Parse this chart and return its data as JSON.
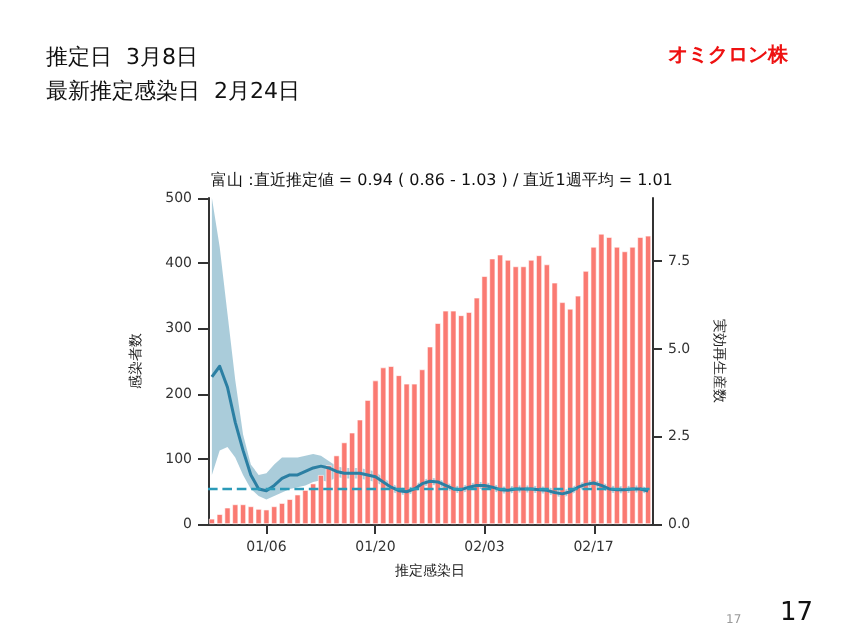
{
  "chart_data": {
    "type": "bar",
    "title": "富山 :直近推定値 = 0.94 ( 0.86 - 1.03 ) / 直近1週平均 = 1.01",
    "xlabel": "推定感染日",
    "ylabel": "感染者数",
    "y2label": "実効再生産数",
    "annotations": [
      "推定日  3月8日",
      "最新推定感染日  2月24日",
      "オミクロン株",
      "17",
      "17"
    ],
    "categories": [
      null,
      null,
      null,
      null,
      null,
      null,
      null,
      "01/06",
      null,
      null,
      null,
      null,
      null,
      null,
      null,
      null,
      null,
      null,
      null,
      null,
      null,
      "01/20",
      null,
      null,
      null,
      null,
      null,
      null,
      null,
      null,
      null,
      null,
      null,
      null,
      null,
      "02/03",
      null,
      null,
      null,
      null,
      null,
      null,
      null,
      null,
      null,
      null,
      null,
      null,
      null,
      "02/17",
      null,
      null,
      null,
      null,
      null,
      null,
      null
    ],
    "series": [
      {
        "color": "#fa7a72",
        "values": [
          8,
          15,
          25,
          30,
          30,
          27,
          23,
          22,
          27,
          32,
          38,
          45,
          52,
          62,
          75,
          90,
          105,
          125,
          140,
          160,
          190,
          220,
          240,
          242,
          228,
          215,
          215,
          237,
          272,
          308,
          327,
          327,
          320,
          325,
          347,
          380,
          407,
          413,
          405,
          395,
          395,
          405,
          412,
          398,
          370,
          340,
          330,
          350,
          388,
          425,
          445,
          440,
          425,
          418,
          425,
          440,
          442
        ]
      },
      {
        "type": "line",
        "axis": "y2",
        "color": "#2b7fa3",
        "values": [
          4.2,
          4.5,
          3.9,
          2.9,
          2.1,
          1.4,
          1.0,
          0.95,
          1.1,
          1.3,
          1.4,
          1.4,
          1.5,
          1.6,
          1.65,
          1.6,
          1.5,
          1.45,
          1.45,
          1.45,
          1.4,
          1.35,
          1.2,
          1.05,
          0.95,
          0.92,
          1.0,
          1.15,
          1.22,
          1.2,
          1.1,
          1.0,
          0.98,
          1.05,
          1.1,
          1.1,
          1.05,
          0.98,
          0.96,
          1.0,
          1.0,
          1.0,
          0.98,
          0.96,
          0.9,
          0.86,
          0.92,
          1.05,
          1.13,
          1.17,
          1.1,
          1.0,
          0.98,
          0.98,
          1.0,
          1.0,
          0.94
        ],
        "lower": [
          1.4,
          2.1,
          2.2,
          1.9,
          1.4,
          1.0,
          0.8,
          0.7,
          0.8,
          0.9,
          1.0,
          1.05,
          1.1,
          1.2,
          1.25,
          1.2,
          1.35,
          1.3,
          1.3,
          1.3,
          1.25,
          1.2,
          1.08,
          0.93,
          0.85,
          0.82,
          0.9,
          1.05,
          1.12,
          1.1,
          1.0,
          0.9,
          0.88,
          0.95,
          1.0,
          1.0,
          0.95,
          0.88,
          0.86,
          0.9,
          0.9,
          0.9,
          0.88,
          0.86,
          0.8,
          0.76,
          0.82,
          0.95,
          1.03,
          1.07,
          1.0,
          0.9,
          0.88,
          0.88,
          0.9,
          0.9,
          0.86
        ],
        "upper": [
          9.3,
          7.9,
          6.0,
          4.1,
          2.55,
          1.7,
          1.4,
          1.45,
          1.7,
          1.9,
          1.9,
          1.9,
          1.95,
          2.0,
          1.95,
          1.8,
          1.65,
          1.6,
          1.6,
          1.6,
          1.55,
          1.5,
          1.32,
          1.17,
          1.05,
          1.02,
          1.1,
          1.25,
          1.32,
          1.3,
          1.2,
          1.1,
          1.08,
          1.15,
          1.2,
          1.2,
          1.15,
          1.08,
          1.06,
          1.1,
          1.1,
          1.1,
          1.08,
          1.06,
          1.0,
          0.96,
          1.02,
          1.15,
          1.23,
          1.27,
          1.2,
          1.1,
          1.08,
          1.08,
          1.1,
          1.1,
          1.03
        ]
      }
    ],
    "ylim": [
      0,
      500
    ],
    "yticks": [
      0,
      100,
      200,
      300,
      400,
      500
    ],
    "y2lim": [
      0,
      9.3
    ],
    "y2ticks": [
      {
        "value": 0,
        "label": "0.0"
      },
      {
        "value": 2.5,
        "label": "2.5"
      },
      {
        "value": 5,
        "label": "5.0"
      },
      {
        "value": 7.5,
        "label": "7.5"
      }
    ],
    "ref_lines": [
      {
        "axis": "y2",
        "value": 1,
        "color": "#2b9ab8",
        "line_style": "dashed"
      }
    ],
    "marker": "none",
    "grid": false
  }
}
